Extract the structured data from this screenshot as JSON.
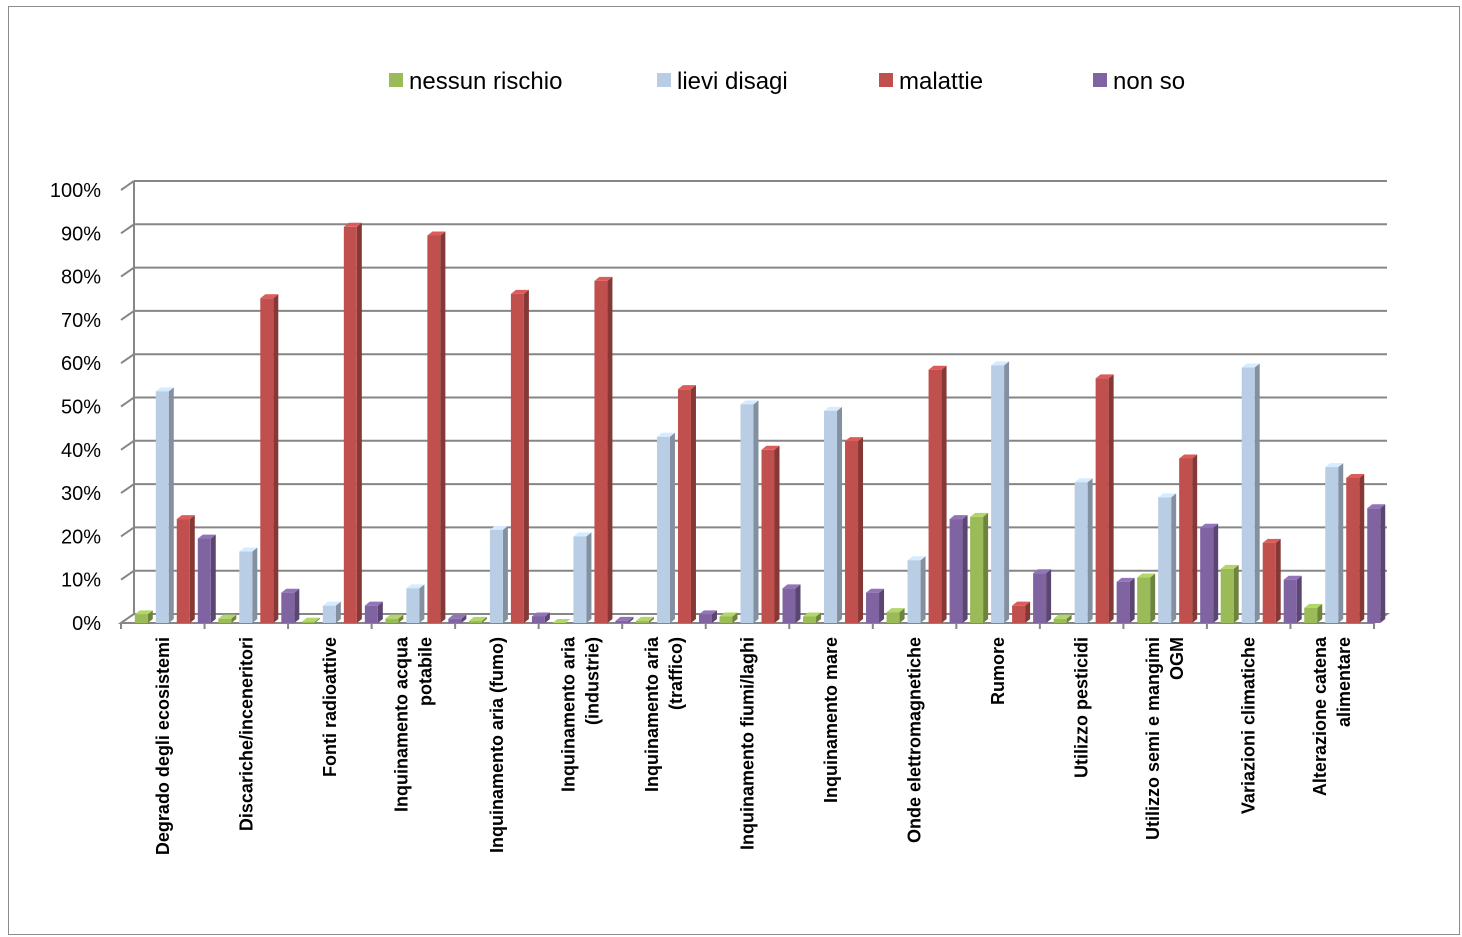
{
  "chart_data": {
    "type": "bar",
    "title": "",
    "xlabel": "",
    "ylabel": "",
    "ylim": [
      0,
      100
    ],
    "y_ticks": [
      "0%",
      "10%",
      "20%",
      "30%",
      "40%",
      "50%",
      "60%",
      "70%",
      "80%",
      "90%",
      "100%"
    ],
    "grid": true,
    "legend_position": "top",
    "categories": [
      [
        "Degrado degli ecosistemi"
      ],
      [
        "Discariche/inceneritori"
      ],
      [
        "Fonti radioattive"
      ],
      [
        "Inquinamento acqua",
        "potabile"
      ],
      [
        "Inquinamento aria (fumo)"
      ],
      [
        "Inquinamento aria",
        "(industrie)"
      ],
      [
        "Inquinamento aria",
        "(traffico)"
      ],
      [
        "Inquinamento fiumi/laghi"
      ],
      [
        "Inquinamento mare"
      ],
      [
        "Onde elettromagnetiche"
      ],
      [
        "Rumore"
      ],
      [
        "Utilizzo pesticidi"
      ],
      [
        "Utilizzo semi e mangimi",
        "OGM"
      ],
      [
        "Variazioni climatiche"
      ],
      [
        "Alterazione catena",
        "alimentare"
      ]
    ],
    "series": [
      {
        "name": "nessun rischio",
        "color": "#9bbb59",
        "values": [
          2,
          1,
          0.3,
          1,
          0.5,
          0,
          0.5,
          1.5,
          1.5,
          2.5,
          24.5,
          1,
          10.5,
          12.5,
          3.5
        ]
      },
      {
        "name": "lievi disagi",
        "color": "#b9cde5",
        "values": [
          53.5,
          16.5,
          4,
          8,
          21.5,
          20,
          43,
          50.5,
          49,
          14.5,
          59.5,
          32.5,
          29,
          59,
          36
        ]
      },
      {
        "name": "malattie",
        "color": "#c0504d",
        "values": [
          24,
          75,
          91.5,
          89.5,
          76,
          79,
          54,
          40,
          42,
          58.5,
          4,
          56.5,
          38,
          18.5,
          33.5
        ]
      },
      {
        "name": "non so",
        "color": "#8064a2",
        "values": [
          19.5,
          7,
          4,
          1,
          1.5,
          0.5,
          2,
          8,
          7,
          24,
          11.5,
          9.5,
          22,
          10,
          26.5
        ]
      }
    ]
  }
}
